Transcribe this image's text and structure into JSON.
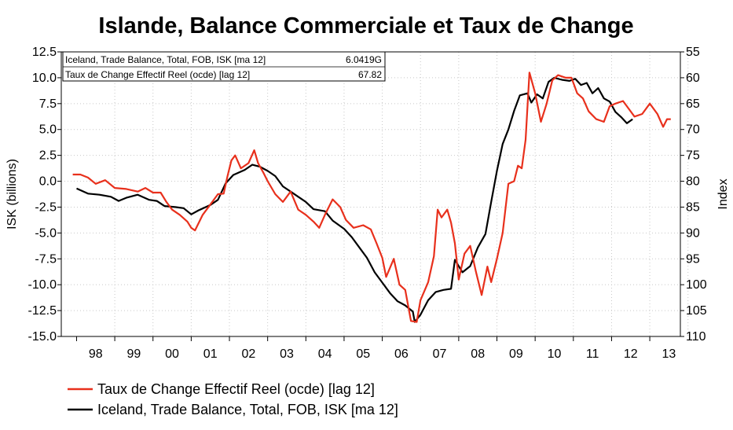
{
  "chart_data": {
    "type": "line",
    "title": "Islande, Balance Commerciale et Taux de Change",
    "ylabel_left": "ISK (billions)",
    "ylabel_right": "Index",
    "x_tick_labels": [
      "98",
      "99",
      "00",
      "01",
      "02",
      "03",
      "04",
      "05",
      "06",
      "07",
      "08",
      "09",
      "10",
      "11",
      "12",
      "13"
    ],
    "y_left_ticks": [
      "12.5",
      "10.0",
      "7.5",
      "5.0",
      "2.5",
      "0.0",
      "-2.5",
      "-5.0",
      "-7.5",
      "-10.0",
      "-12.5",
      "-15.0"
    ],
    "y_right_ticks": [
      "55",
      "60",
      "65",
      "70",
      "75",
      "80",
      "85",
      "90",
      "95",
      "100",
      "105",
      "110"
    ],
    "ylim_left": [
      -15,
      12.5
    ],
    "ylim_right_inverted": [
      55,
      110
    ],
    "grid": true,
    "info_box": [
      {
        "label": "Iceland, Trade Balance, Total, FOB, ISK [ma 12]",
        "value": "6.0419G"
      },
      {
        "label": "Taux de Change Effectif Reel (ocde) [lag 12]",
        "value": "67.82"
      }
    ],
    "legend": [
      "Taux de Change Effectif Reel (ocde) [lag 12]",
      "Iceland, Trade Balance, Total, FOB, ISK [ma 12]"
    ],
    "series": [
      {
        "name": "Iceland, Trade Balance, Total, FOB, ISK [ma 12]",
        "color": "#000000",
        "axis": "left",
        "points": [
          [
            1998.0,
            -0.7
          ],
          [
            1998.3,
            -1.2
          ],
          [
            1998.6,
            -1.3
          ],
          [
            1998.9,
            -1.5
          ],
          [
            1999.1,
            -1.9
          ],
          [
            1999.3,
            -1.6
          ],
          [
            1999.6,
            -1.3
          ],
          [
            1999.9,
            -1.8
          ],
          [
            2000.1,
            -1.9
          ],
          [
            2000.3,
            -2.4
          ],
          [
            2000.6,
            -2.5
          ],
          [
            2000.8,
            -2.6
          ],
          [
            2001.0,
            -3.2
          ],
          [
            2001.2,
            -2.8
          ],
          [
            2001.5,
            -2.3
          ],
          [
            2001.7,
            -1.8
          ],
          [
            2001.9,
            -0.2
          ],
          [
            2002.1,
            0.6
          ],
          [
            2002.4,
            1.1
          ],
          [
            2002.6,
            1.6
          ],
          [
            2002.8,
            1.4
          ],
          [
            2003.0,
            1.0
          ],
          [
            2003.2,
            0.5
          ],
          [
            2003.4,
            -0.5
          ],
          [
            2003.6,
            -1.0
          ],
          [
            2003.8,
            -1.5
          ],
          [
            2004.0,
            -2.0
          ],
          [
            2004.2,
            -2.7
          ],
          [
            2004.5,
            -2.9
          ],
          [
            2004.7,
            -3.8
          ],
          [
            2005.0,
            -4.6
          ],
          [
            2005.2,
            -5.4
          ],
          [
            2005.4,
            -6.4
          ],
          [
            2005.6,
            -7.4
          ],
          [
            2005.8,
            -8.8
          ],
          [
            2006.0,
            -9.8
          ],
          [
            2006.2,
            -10.8
          ],
          [
            2006.4,
            -11.6
          ],
          [
            2006.6,
            -12.0
          ],
          [
            2006.8,
            -12.6
          ],
          [
            2006.85,
            -13.6
          ],
          [
            2007.0,
            -12.9
          ],
          [
            2007.2,
            -11.5
          ],
          [
            2007.4,
            -10.7
          ],
          [
            2007.6,
            -10.5
          ],
          [
            2007.8,
            -10.4
          ],
          [
            2007.9,
            -7.6
          ],
          [
            2008.1,
            -8.8
          ],
          [
            2008.3,
            -8.2
          ],
          [
            2008.5,
            -6.4
          ],
          [
            2008.7,
            -5.1
          ],
          [
            2008.85,
            -2.0
          ],
          [
            2009.0,
            1.0
          ],
          [
            2009.15,
            3.6
          ],
          [
            2009.3,
            5.0
          ],
          [
            2009.45,
            6.8
          ],
          [
            2009.6,
            8.3
          ],
          [
            2009.8,
            8.5
          ],
          [
            2009.9,
            7.6
          ],
          [
            2010.05,
            8.4
          ],
          [
            2010.2,
            8.0
          ],
          [
            2010.35,
            9.6
          ],
          [
            2010.5,
            10.0
          ],
          [
            2010.7,
            9.8
          ],
          [
            2010.9,
            9.7
          ],
          [
            2011.05,
            9.9
          ],
          [
            2011.2,
            9.3
          ],
          [
            2011.35,
            9.5
          ],
          [
            2011.5,
            8.5
          ],
          [
            2011.65,
            9.0
          ],
          [
            2011.8,
            8.0
          ],
          [
            2011.95,
            7.7
          ],
          [
            2012.1,
            6.7
          ],
          [
            2012.25,
            6.2
          ],
          [
            2012.4,
            5.6
          ],
          [
            2012.55,
            6.0
          ]
        ]
      },
      {
        "name": "Taux de Change Effectif Reel (ocde) [lag 12]",
        "color": "#e8301c",
        "axis": "right",
        "points": [
          [
            1997.9,
            78.7
          ],
          [
            1998.1,
            78.7
          ],
          [
            1998.3,
            79.3
          ],
          [
            1998.5,
            80.5
          ],
          [
            1998.75,
            79.8
          ],
          [
            1999.0,
            81.3
          ],
          [
            1999.3,
            81.5
          ],
          [
            1999.6,
            82.0
          ],
          [
            1999.8,
            81.3
          ],
          [
            2000.0,
            82.2
          ],
          [
            2000.2,
            82.2
          ],
          [
            2000.35,
            84.0
          ],
          [
            2000.5,
            85.5
          ],
          [
            2000.7,
            86.5
          ],
          [
            2000.9,
            87.8
          ],
          [
            2001.0,
            89.0
          ],
          [
            2001.1,
            89.5
          ],
          [
            2001.3,
            86.5
          ],
          [
            2001.5,
            84.5
          ],
          [
            2001.7,
            82.5
          ],
          [
            2001.85,
            82.4
          ],
          [
            2001.95,
            79.0
          ],
          [
            2002.05,
            76.0
          ],
          [
            2002.15,
            75.0
          ],
          [
            2002.3,
            77.5
          ],
          [
            2002.5,
            76.5
          ],
          [
            2002.65,
            74.0
          ],
          [
            2002.75,
            76.5
          ],
          [
            2002.9,
            78.5
          ],
          [
            2003.0,
            80.0
          ],
          [
            2003.2,
            82.5
          ],
          [
            2003.4,
            84.0
          ],
          [
            2003.6,
            82.0
          ],
          [
            2003.8,
            85.5
          ],
          [
            2004.0,
            86.5
          ],
          [
            2004.2,
            87.8
          ],
          [
            2004.35,
            89.0
          ],
          [
            2004.5,
            86.5
          ],
          [
            2004.7,
            83.5
          ],
          [
            2004.9,
            85.0
          ],
          [
            2005.05,
            87.5
          ],
          [
            2005.25,
            89.0
          ],
          [
            2005.5,
            88.5
          ],
          [
            2005.7,
            89.3
          ],
          [
            2005.85,
            92.0
          ],
          [
            2006.0,
            94.8
          ],
          [
            2006.1,
            98.5
          ],
          [
            2006.3,
            95.0
          ],
          [
            2006.45,
            100.0
          ],
          [
            2006.6,
            101.0
          ],
          [
            2006.75,
            107.0
          ],
          [
            2006.9,
            107.2
          ],
          [
            2007.0,
            103.0
          ],
          [
            2007.2,
            99.5
          ],
          [
            2007.35,
            94.5
          ],
          [
            2007.45,
            85.5
          ],
          [
            2007.55,
            87.0
          ],
          [
            2007.7,
            85.5
          ],
          [
            2007.8,
            88.0
          ],
          [
            2007.9,
            92.0
          ],
          [
            2008.0,
            99.0
          ],
          [
            2008.15,
            94.0
          ],
          [
            2008.3,
            92.5
          ],
          [
            2008.45,
            97.5
          ],
          [
            2008.6,
            102.0
          ],
          [
            2008.75,
            96.5
          ],
          [
            2008.85,
            99.5
          ],
          [
            2009.0,
            95.0
          ],
          [
            2009.15,
            90.0
          ],
          [
            2009.3,
            80.5
          ],
          [
            2009.45,
            80.0
          ],
          [
            2009.55,
            77.0
          ],
          [
            2009.65,
            77.5
          ],
          [
            2009.75,
            72.0
          ],
          [
            2009.85,
            59.0
          ],
          [
            2010.0,
            63.0
          ],
          [
            2010.15,
            68.5
          ],
          [
            2010.3,
            65.0
          ],
          [
            2010.45,
            60.5
          ],
          [
            2010.6,
            59.5
          ],
          [
            2010.8,
            60.0
          ],
          [
            2010.95,
            60.0
          ],
          [
            2011.1,
            63.0
          ],
          [
            2011.25,
            64.0
          ],
          [
            2011.4,
            66.5
          ],
          [
            2011.6,
            68.0
          ],
          [
            2011.8,
            68.5
          ],
          [
            2011.95,
            65.5
          ],
          [
            2012.1,
            65.0
          ],
          [
            2012.3,
            64.5
          ],
          [
            2012.45,
            66.0
          ],
          [
            2012.6,
            67.5
          ],
          [
            2012.8,
            67.0
          ],
          [
            2013.0,
            65.0
          ],
          [
            2013.2,
            67.0
          ],
          [
            2013.35,
            69.5
          ],
          [
            2013.45,
            68.0
          ],
          [
            2013.55,
            68.0
          ]
        ]
      }
    ]
  }
}
